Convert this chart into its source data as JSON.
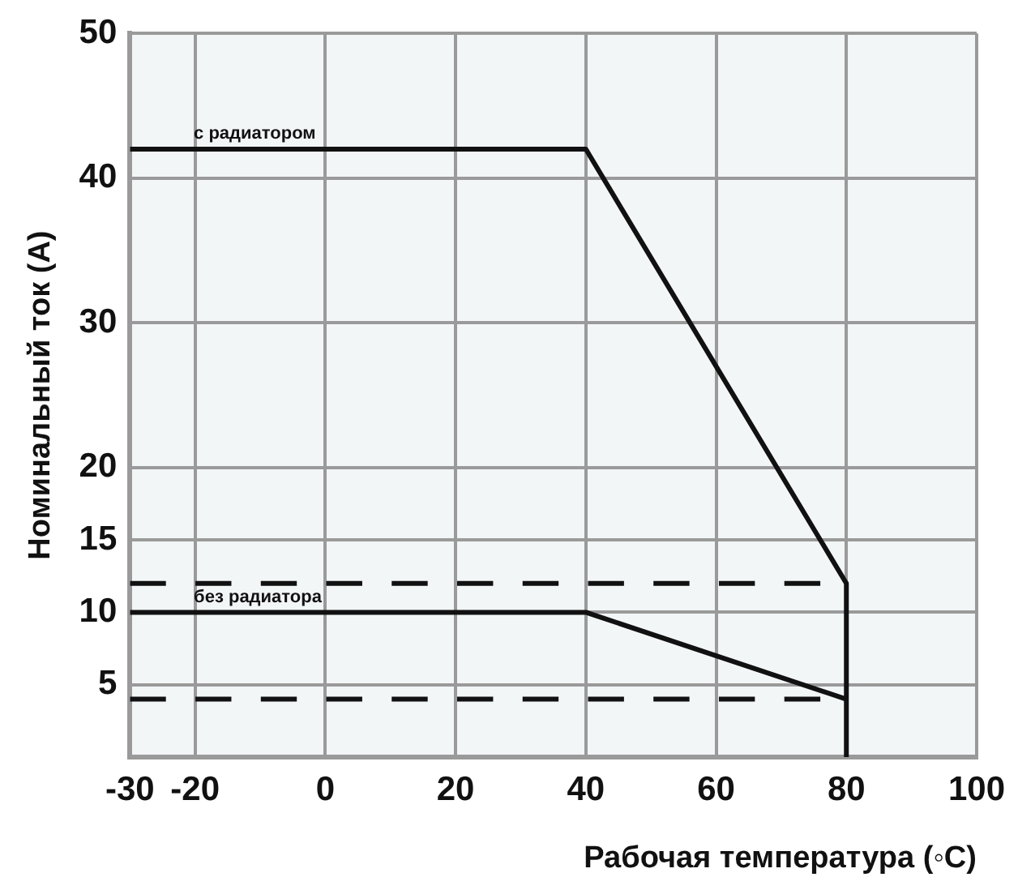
{
  "chart_data": {
    "type": "line",
    "xlabel": "Рабочая температура (◦C)",
    "ylabel": "Номинальный ток (А)",
    "xlim": [
      -30,
      100
    ],
    "xticks": [
      -30,
      -20,
      0,
      20,
      40,
      60,
      80,
      100
    ],
    "ylim": [
      0,
      50
    ],
    "yticks": [
      5,
      10,
      15,
      20,
      30,
      40,
      50
    ],
    "grid": true,
    "legend": false,
    "marker": "none",
    "series": [
      {
        "name": "с радиатором",
        "color": "#111111",
        "x": [
          -30,
          40,
          80,
          80
        ],
        "values": [
          42,
          42,
          12,
          0
        ],
        "line_style": "solid"
      },
      {
        "name": "без радиатора",
        "color": "#111111",
        "x": [
          -30,
          40,
          80
        ],
        "values": [
          10,
          10,
          4
        ],
        "line_style": "solid"
      },
      {
        "color": "#111111",
        "x": [
          -30,
          76
        ],
        "values": [
          12,
          12
        ],
        "line_style": "dashed"
      },
      {
        "color": "#111111",
        "x": [
          -30,
          76
        ],
        "values": [
          4,
          4
        ],
        "line_style": "dashed"
      }
    ]
  }
}
